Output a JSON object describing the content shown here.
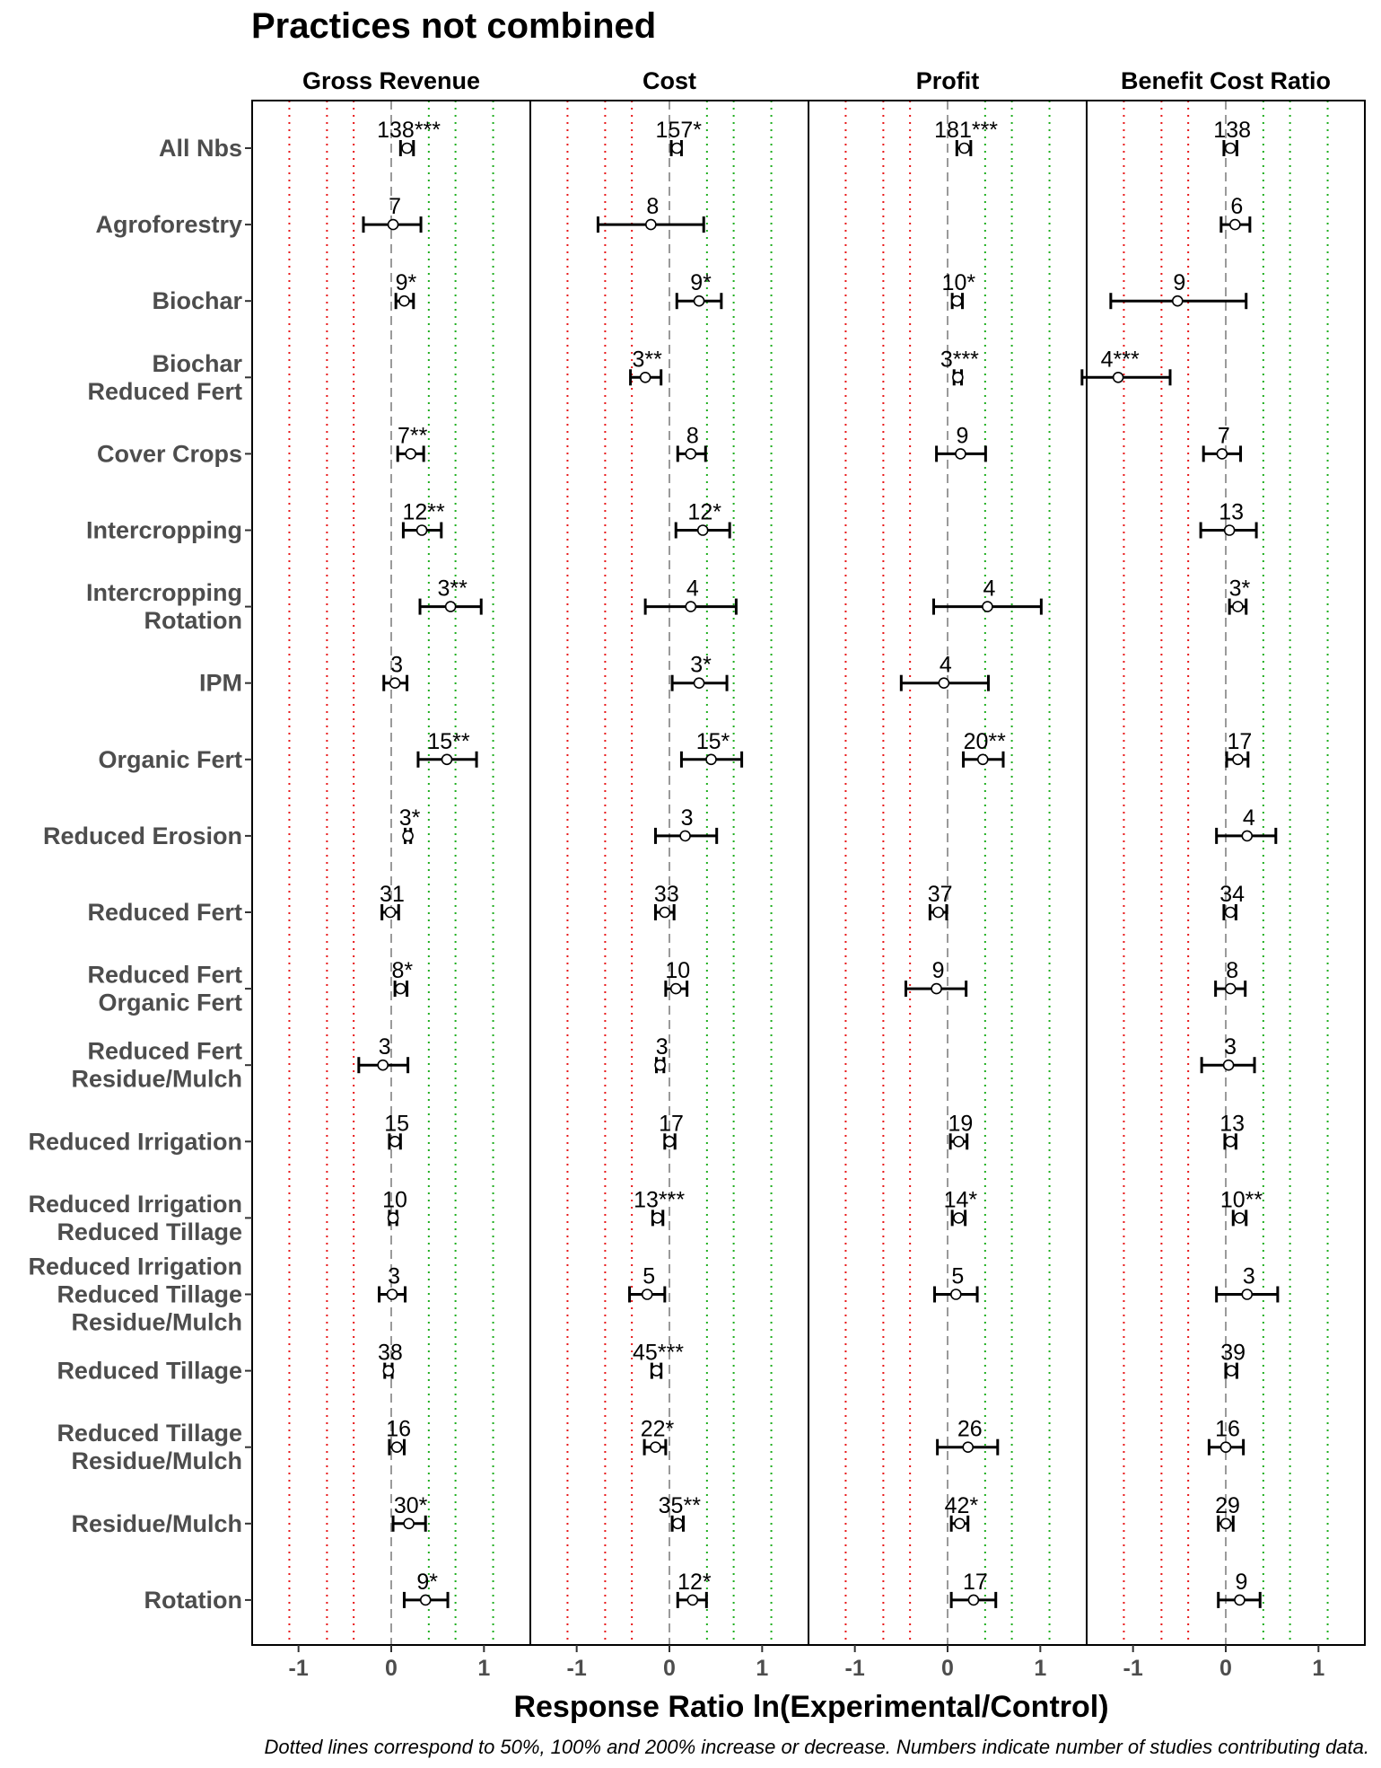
{
  "chart_data": {
    "type": "forest",
    "title": "Practices not combined",
    "xlabel": "Response Ratio ln(Experimental/Control)",
    "caption": "Dotted lines correspond to 50%, 100% and 200% increase or decrease. Numbers indicate number of studies contributing data.",
    "xlim": [
      -1.5,
      1.5
    ],
    "xticks": [
      -1,
      0,
      1
    ],
    "reference_lines": {
      "zero": 0,
      "decrease": [
        -0.405,
        -0.693,
        -1.099
      ],
      "increase": [
        0.405,
        0.693,
        1.099
      ],
      "decrease_color": "#e8191a",
      "increase_color": "#1fae1f",
      "zero_color": "#9a9a9a"
    },
    "rows": [
      [
        "All Nbs"
      ],
      [
        "Agroforestry"
      ],
      [
        "Biochar"
      ],
      [
        "Biochar",
        "Reduced Fert"
      ],
      [
        "Cover Crops"
      ],
      [
        "Intercropping"
      ],
      [
        "Intercropping",
        "Rotation"
      ],
      [
        "IPM"
      ],
      [
        "Organic Fert"
      ],
      [
        "Reduced Erosion"
      ],
      [
        "Reduced Fert"
      ],
      [
        "Reduced Fert",
        "Organic Fert"
      ],
      [
        "Reduced Fert",
        "Residue/Mulch"
      ],
      [
        "Reduced Irrigation"
      ],
      [
        "Reduced Irrigation",
        "Reduced Tillage"
      ],
      [
        "Reduced Irrigation",
        "Reduced Tillage",
        "Residue/Mulch"
      ],
      [
        "Reduced Tillage"
      ],
      [
        "Reduced Tillage",
        "Residue/Mulch"
      ],
      [
        "Residue/Mulch"
      ],
      [
        "Rotation"
      ]
    ],
    "panels": [
      {
        "name": "Gross Revenue",
        "points": [
          {
            "row": 0,
            "est": 0.17,
            "lo": 0.1,
            "hi": 0.24,
            "label": "138***"
          },
          {
            "row": 1,
            "est": 0.02,
            "lo": -0.3,
            "hi": 0.32,
            "label": "7"
          },
          {
            "row": 2,
            "est": 0.14,
            "lo": 0.05,
            "hi": 0.24,
            "label": "9*"
          },
          {
            "row": 4,
            "est": 0.21,
            "lo": 0.07,
            "hi": 0.35,
            "label": "7**"
          },
          {
            "row": 5,
            "est": 0.33,
            "lo": 0.13,
            "hi": 0.54,
            "label": "12**"
          },
          {
            "row": 6,
            "est": 0.64,
            "lo": 0.31,
            "hi": 0.97,
            "label": "3**"
          },
          {
            "row": 7,
            "est": 0.04,
            "lo": -0.08,
            "hi": 0.17,
            "label": "3"
          },
          {
            "row": 8,
            "est": 0.6,
            "lo": 0.29,
            "hi": 0.92,
            "label": "15**"
          },
          {
            "row": 9,
            "est": 0.18,
            "lo": 0.15,
            "hi": 0.21,
            "label": "3*"
          },
          {
            "row": 10,
            "est": -0.01,
            "lo": -0.1,
            "hi": 0.08,
            "label": "31"
          },
          {
            "row": 11,
            "est": 0.1,
            "lo": 0.04,
            "hi": 0.17,
            "label": "8*"
          },
          {
            "row": 12,
            "est": -0.09,
            "lo": -0.35,
            "hi": 0.18,
            "label": "3"
          },
          {
            "row": 13,
            "est": 0.04,
            "lo": -0.02,
            "hi": 0.1,
            "label": "15"
          },
          {
            "row": 14,
            "est": 0.02,
            "lo": -0.02,
            "hi": 0.06,
            "label": "10"
          },
          {
            "row": 15,
            "est": 0.01,
            "lo": -0.13,
            "hi": 0.15,
            "label": "3"
          },
          {
            "row": 16,
            "est": -0.03,
            "lo": -0.07,
            "hi": 0.01,
            "label": "38"
          },
          {
            "row": 17,
            "est": 0.06,
            "lo": -0.02,
            "hi": 0.14,
            "label": "16"
          },
          {
            "row": 18,
            "est": 0.19,
            "lo": 0.02,
            "hi": 0.37,
            "label": "30*"
          },
          {
            "row": 19,
            "est": 0.37,
            "lo": 0.14,
            "hi": 0.61,
            "label": "9*"
          }
        ]
      },
      {
        "name": "Cost",
        "points": [
          {
            "row": 0,
            "est": 0.08,
            "lo": 0.02,
            "hi": 0.13,
            "label": "157*"
          },
          {
            "row": 1,
            "est": -0.2,
            "lo": -0.77,
            "hi": 0.37,
            "label": "8"
          },
          {
            "row": 2,
            "est": 0.32,
            "lo": 0.08,
            "hi": 0.56,
            "label": "9*"
          },
          {
            "row": 3,
            "est": -0.26,
            "lo": -0.42,
            "hi": -0.09,
            "label": "3**"
          },
          {
            "row": 4,
            "est": 0.23,
            "lo": 0.09,
            "hi": 0.39,
            "label": "8"
          },
          {
            "row": 5,
            "est": 0.36,
            "lo": 0.07,
            "hi": 0.65,
            "label": "12*"
          },
          {
            "row": 6,
            "est": 0.23,
            "lo": -0.26,
            "hi": 0.72,
            "label": "4"
          },
          {
            "row": 7,
            "est": 0.32,
            "lo": 0.03,
            "hi": 0.62,
            "label": "3*"
          },
          {
            "row": 8,
            "est": 0.45,
            "lo": 0.13,
            "hi": 0.78,
            "label": "15*"
          },
          {
            "row": 9,
            "est": 0.17,
            "lo": -0.15,
            "hi": 0.51,
            "label": "3"
          },
          {
            "row": 10,
            "est": -0.05,
            "lo": -0.15,
            "hi": 0.05,
            "label": "33"
          },
          {
            "row": 11,
            "est": 0.07,
            "lo": -0.04,
            "hi": 0.19,
            "label": "10"
          },
          {
            "row": 12,
            "est": -0.1,
            "lo": -0.14,
            "hi": -0.06,
            "label": "3"
          },
          {
            "row": 13,
            "est": 0.0,
            "lo": -0.05,
            "hi": 0.06,
            "label": "17"
          },
          {
            "row": 14,
            "est": -0.13,
            "lo": -0.18,
            "hi": -0.07,
            "label": "13***"
          },
          {
            "row": 15,
            "est": -0.24,
            "lo": -0.43,
            "hi": -0.05,
            "label": "5"
          },
          {
            "row": 16,
            "est": -0.14,
            "lo": -0.19,
            "hi": -0.09,
            "label": "45***"
          },
          {
            "row": 17,
            "est": -0.15,
            "lo": -0.27,
            "hi": -0.04,
            "label": "22*"
          },
          {
            "row": 18,
            "est": 0.09,
            "lo": 0.03,
            "hi": 0.15,
            "label": "35**"
          },
          {
            "row": 19,
            "est": 0.25,
            "lo": 0.09,
            "hi": 0.4,
            "label": "12*"
          }
        ]
      },
      {
        "name": "Profit",
        "points": [
          {
            "row": 0,
            "est": 0.18,
            "lo": 0.1,
            "hi": 0.25,
            "label": "181***"
          },
          {
            "row": 2,
            "est": 0.1,
            "lo": 0.05,
            "hi": 0.16,
            "label": "10*"
          },
          {
            "row": 3,
            "est": 0.11,
            "lo": 0.07,
            "hi": 0.15,
            "label": "3***"
          },
          {
            "row": 4,
            "est": 0.14,
            "lo": -0.12,
            "hi": 0.41,
            "label": "9"
          },
          {
            "row": 6,
            "est": 0.43,
            "lo": -0.15,
            "hi": 1.01,
            "label": "4"
          },
          {
            "row": 7,
            "est": -0.04,
            "lo": -0.5,
            "hi": 0.44,
            "label": "4"
          },
          {
            "row": 8,
            "est": 0.38,
            "lo": 0.17,
            "hi": 0.6,
            "label": "20**"
          },
          {
            "row": 10,
            "est": -0.1,
            "lo": -0.19,
            "hi": -0.01,
            "label": "37"
          },
          {
            "row": 11,
            "est": -0.12,
            "lo": -0.45,
            "hi": 0.2,
            "label": "9"
          },
          {
            "row": 13,
            "est": 0.12,
            "lo": 0.03,
            "hi": 0.21,
            "label": "19"
          },
          {
            "row": 14,
            "est": 0.12,
            "lo": 0.05,
            "hi": 0.19,
            "label": "14*"
          },
          {
            "row": 15,
            "est": 0.09,
            "lo": -0.14,
            "hi": 0.32,
            "label": "5"
          },
          {
            "row": 17,
            "est": 0.22,
            "lo": -0.11,
            "hi": 0.54,
            "label": "26"
          },
          {
            "row": 18,
            "est": 0.13,
            "lo": 0.04,
            "hi": 0.22,
            "label": "42*"
          },
          {
            "row": 19,
            "est": 0.28,
            "lo": 0.04,
            "hi": 0.52,
            "label": "17"
          }
        ]
      },
      {
        "name": "Benefit Cost Ratio",
        "points": [
          {
            "row": 0,
            "est": 0.05,
            "lo": -0.02,
            "hi": 0.12,
            "label": "138"
          },
          {
            "row": 1,
            "est": 0.1,
            "lo": -0.05,
            "hi": 0.26,
            "label": "6"
          },
          {
            "row": 2,
            "est": -0.52,
            "lo": -1.24,
            "hi": 0.22,
            "label": "9"
          },
          {
            "row": 3,
            "est": -1.16,
            "lo": -1.55,
            "hi": -0.6,
            "label": "4***"
          },
          {
            "row": 4,
            "est": -0.04,
            "lo": -0.24,
            "hi": 0.16,
            "label": "7"
          },
          {
            "row": 5,
            "est": 0.04,
            "lo": -0.27,
            "hi": 0.33,
            "label": "13"
          },
          {
            "row": 6,
            "est": 0.13,
            "lo": 0.04,
            "hi": 0.22,
            "label": "3*"
          },
          {
            "row": 8,
            "est": 0.13,
            "lo": 0.01,
            "hi": 0.24,
            "label": "17"
          },
          {
            "row": 9,
            "est": 0.23,
            "lo": -0.1,
            "hi": 0.54,
            "label": "4"
          },
          {
            "row": 10,
            "est": 0.05,
            "lo": -0.02,
            "hi": 0.11,
            "label": "34"
          },
          {
            "row": 11,
            "est": 0.05,
            "lo": -0.11,
            "hi": 0.21,
            "label": "8"
          },
          {
            "row": 12,
            "est": 0.03,
            "lo": -0.26,
            "hi": 0.31,
            "label": "3"
          },
          {
            "row": 13,
            "est": 0.05,
            "lo": -0.01,
            "hi": 0.11,
            "label": "13"
          },
          {
            "row": 14,
            "est": 0.15,
            "lo": 0.08,
            "hi": 0.22,
            "label": "10**"
          },
          {
            "row": 15,
            "est": 0.23,
            "lo": -0.1,
            "hi": 0.56,
            "label": "3"
          },
          {
            "row": 16,
            "est": 0.06,
            "lo": 0.0,
            "hi": 0.12,
            "label": "39"
          },
          {
            "row": 17,
            "est": 0.0,
            "lo": -0.18,
            "hi": 0.19,
            "label": "16"
          },
          {
            "row": 18,
            "est": 0.0,
            "lo": -0.08,
            "hi": 0.08,
            "label": "29"
          },
          {
            "row": 19,
            "est": 0.15,
            "lo": -0.08,
            "hi": 0.37,
            "label": "9"
          }
        ]
      }
    ]
  }
}
